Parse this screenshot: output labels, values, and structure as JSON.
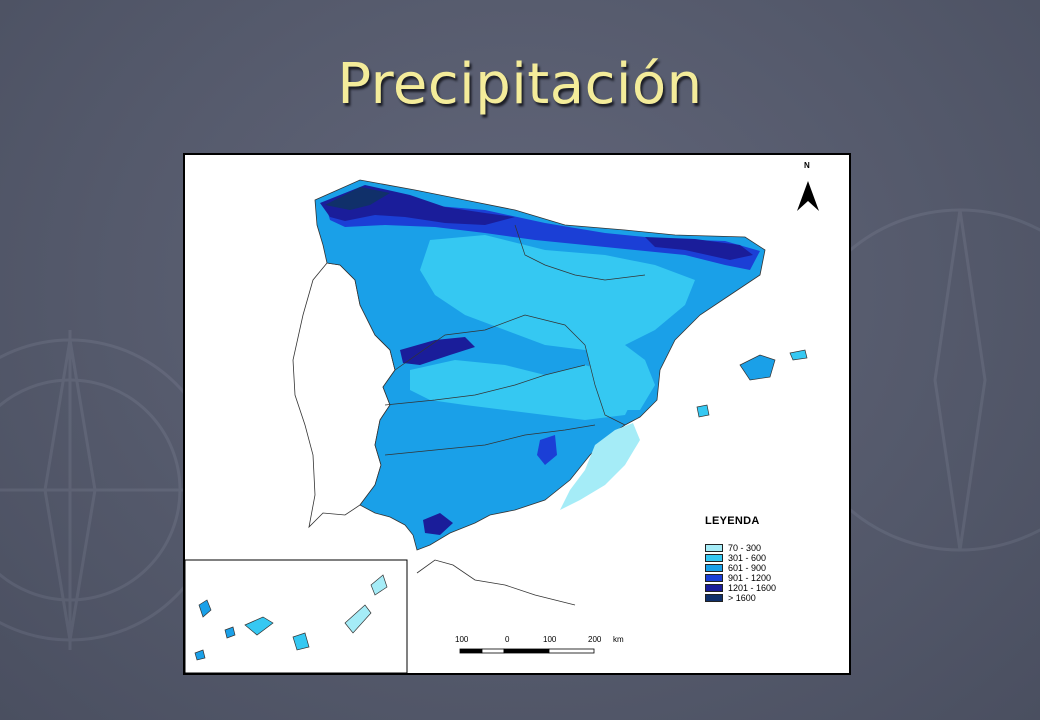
{
  "slide": {
    "title": "Precipitación"
  },
  "legend": {
    "title": "LEYENDA",
    "items": [
      {
        "label": "70 - 300",
        "color": "#a5ecf7"
      },
      {
        "label": "301 - 600",
        "color": "#35c8f2"
      },
      {
        "label": "601 - 900",
        "color": "#1aa0e8"
      },
      {
        "label": "901 - 1200",
        "color": "#1b3fd6"
      },
      {
        "label": "1201 - 1600",
        "color": "#1a1d9a"
      },
      {
        "label": "> 1600",
        "color": "#10306a"
      }
    ]
  },
  "scale_bar": {
    "labels": [
      "100",
      "0",
      "100",
      "200",
      "km"
    ]
  },
  "north_arrow": {
    "label": "N"
  }
}
